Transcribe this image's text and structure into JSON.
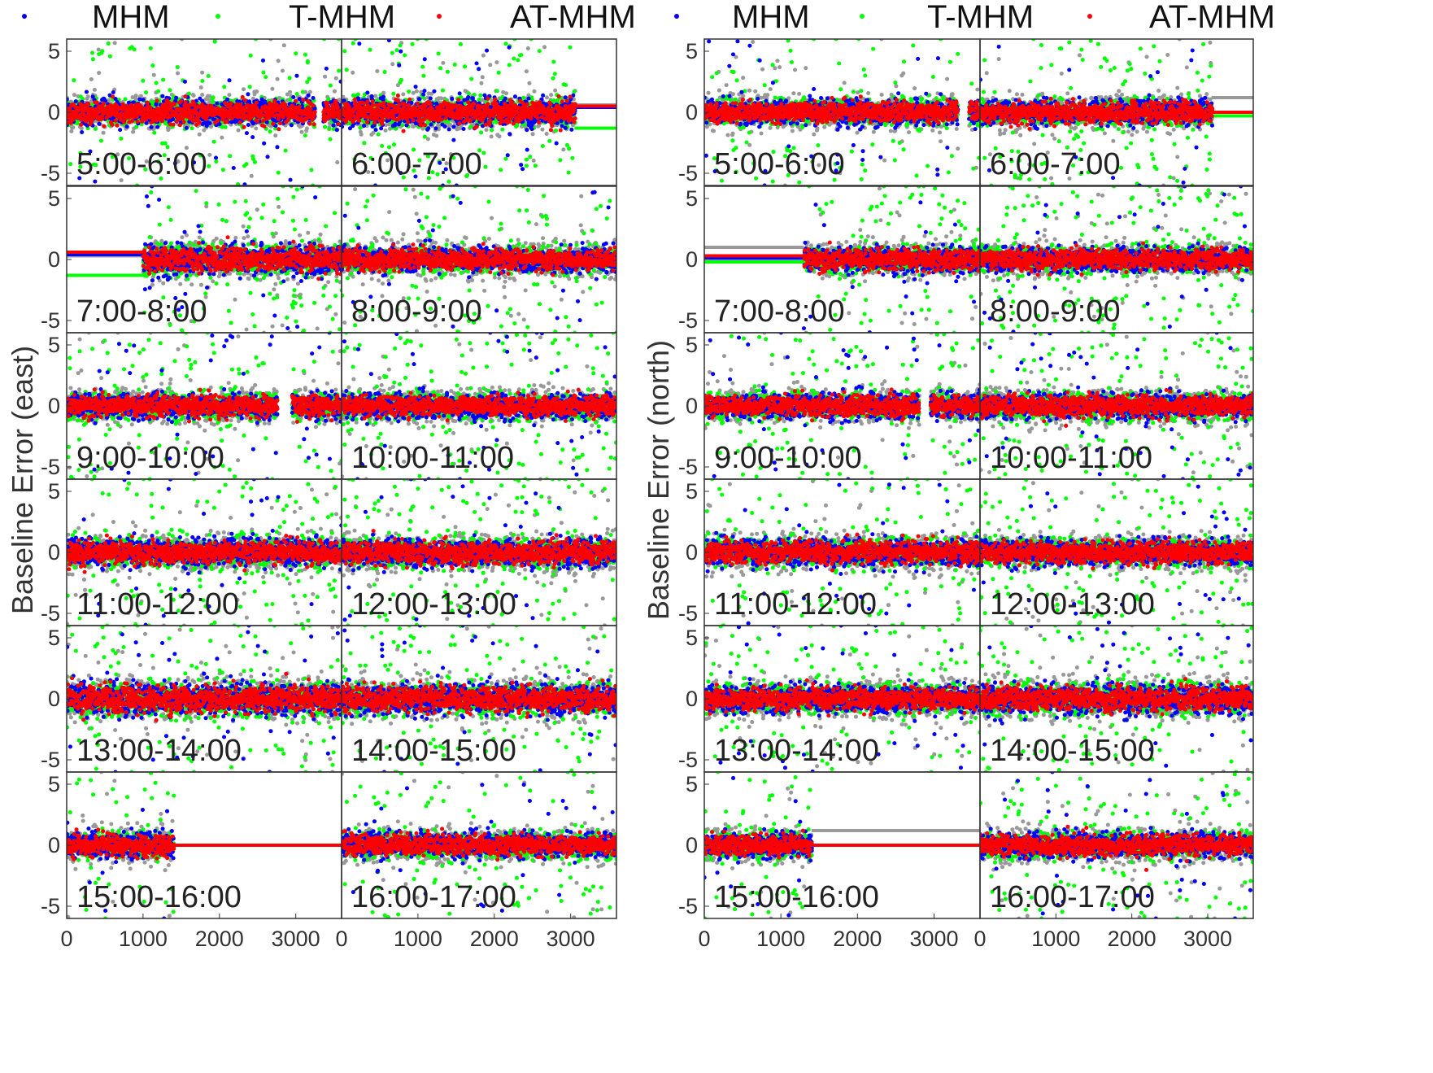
{
  "chart_data": [
    {
      "type": "scatter",
      "title": "",
      "xlabel": "",
      "ylabel": "Baseline Error (east)",
      "legend": {
        "placement": "top",
        "entries": [
          {
            "name": "MHM",
            "color": "#0000ff"
          },
          {
            "name": "T-MHM",
            "color": "#00ff00"
          },
          {
            "name": "AT-MHM",
            "color": "#ff0000"
          }
        ]
      },
      "background_series_color": "#999999",
      "x_ticks": [
        "0",
        "1000",
        "2000",
        "3000"
      ],
      "y_ticks": [
        "-5",
        "0",
        "5"
      ],
      "xlim": [
        0,
        3600
      ],
      "ylim": [
        -6,
        6
      ],
      "grid": false,
      "panels": [
        {
          "label": "5:00-6:00",
          "data_end": 3600,
          "gap": [
            3250,
            3350
          ],
          "noise": 1.0
        },
        {
          "label": "6:00-7:00",
          "data_end": 3050,
          "gap": null,
          "flat_after": {
            "red": 0.5,
            "blue": 0.4,
            "green": -1.3,
            "gray": 0.6
          },
          "noise": 1.1
        },
        {
          "label": "7:00-8:00",
          "data_start": 1000,
          "flat_before": {
            "red": 0.6,
            "blue": 0.4,
            "green": -1.3,
            "gray": 0.3
          },
          "noise": 1.2
        },
        {
          "label": "8:00-9:00",
          "gap": null,
          "noise": 1.0
        },
        {
          "label": "9:00-10:00",
          "gap": [
            2750,
            2950
          ],
          "noise": 1.0
        },
        {
          "label": "10:00-11:00",
          "gap": null,
          "noise": 1.0
        },
        {
          "label": "11:00-12:00",
          "gap": null,
          "noise": 1.1
        },
        {
          "label": "12:00-13:00",
          "gap": null,
          "noise": 1.1
        },
        {
          "label": "13:00-14:00",
          "gap": null,
          "noise": 1.3
        },
        {
          "label": "14:00-15:00",
          "gap": null,
          "noise": 1.2
        },
        {
          "label": "15:00-16:00",
          "data_end": 1400,
          "flat_after": {
            "red": 0,
            "blue": 0,
            "green": 0,
            "gray": 0
          },
          "noise": 1.0
        },
        {
          "label": "16:00-17:00",
          "gap": null,
          "noise": 1.0
        }
      ]
    },
    {
      "type": "scatter",
      "title": "",
      "xlabel": "",
      "ylabel": "Baseline Error (north)",
      "legend": {
        "placement": "top",
        "entries": [
          {
            "name": "MHM",
            "color": "#0000ff"
          },
          {
            "name": "T-MHM",
            "color": "#00ff00"
          },
          {
            "name": "AT-MHM",
            "color": "#ff0000"
          }
        ]
      },
      "background_series_color": "#999999",
      "x_ticks": [
        "0",
        "1000",
        "2000",
        "3000"
      ],
      "y_ticks": [
        "-5",
        "0",
        "5"
      ],
      "xlim": [
        0,
        3600
      ],
      "ylim": [
        -6,
        6
      ],
      "grid": false,
      "panels": [
        {
          "label": "5:00-6:00",
          "gap": [
            3300,
            3450
          ],
          "noise": 1.0
        },
        {
          "label": "6:00-7:00",
          "data_end": 3050,
          "flat_after": {
            "red": 0,
            "blue": 0,
            "green": -0.3,
            "gray": 1.2
          },
          "noise": 1.0
        },
        {
          "label": "7:00-8:00",
          "data_start": 1300,
          "flat_before": {
            "red": 0.3,
            "blue": 0.1,
            "green": -0.2,
            "gray": 1.0
          },
          "noise": 1.0
        },
        {
          "label": "8:00-9:00",
          "gap": null,
          "noise": 1.0
        },
        {
          "label": "9:00-10:00",
          "gap": [
            2800,
            2950
          ],
          "noise": 1.0
        },
        {
          "label": "10:00-11:00",
          "gap": null,
          "noise": 1.0
        },
        {
          "label": "11:00-12:00",
          "gap": null,
          "noise": 1.1
        },
        {
          "label": "12:00-13:00",
          "gap": null,
          "noise": 1.0
        },
        {
          "label": "13:00-14:00",
          "gap": null,
          "noise": 1.1
        },
        {
          "label": "14:00-15:00",
          "gap": null,
          "noise": 1.2
        },
        {
          "label": "15:00-16:00",
          "data_end": 1400,
          "flat_after": {
            "red": 0,
            "blue": 0,
            "green": 0,
            "gray": 1.2
          },
          "noise": 1.0
        },
        {
          "label": "16:00-17:00",
          "gap": null,
          "noise": 1.0
        }
      ]
    }
  ]
}
